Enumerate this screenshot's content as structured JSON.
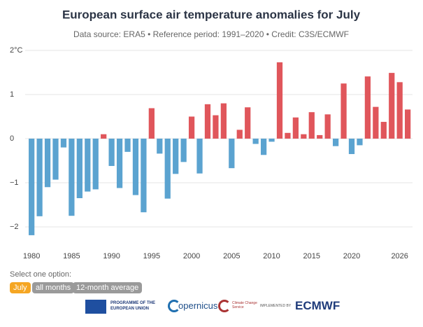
{
  "chart_data": {
    "type": "bar",
    "title": "European surface air temperature anomalies for July",
    "subtitle": "Data source: ERA5 • Reference period: 1991–2020 • Credit: C3S/ECMWF",
    "x": [
      1980,
      1981,
      1982,
      1983,
      1984,
      1985,
      1986,
      1987,
      1988,
      1989,
      1990,
      1991,
      1992,
      1993,
      1994,
      1995,
      1996,
      1997,
      1998,
      1999,
      2000,
      2001,
      2002,
      2003,
      2004,
      2005,
      2006,
      2007,
      2008,
      2009,
      2010,
      2011,
      2012,
      2013,
      2014,
      2015,
      2016,
      2017,
      2018,
      2019,
      2020,
      2021,
      2022,
      2023,
      2024,
      2025,
      2026,
      2027
    ],
    "values": [
      -2.19,
      -1.76,
      -1.1,
      -0.93,
      -0.2,
      -1.75,
      -1.35,
      -1.2,
      -1.15,
      0.1,
      -0.62,
      -1.12,
      -0.3,
      -1.28,
      -1.67,
      0.69,
      -0.34,
      -1.36,
      -0.8,
      -0.53,
      0.5,
      -0.79,
      0.78,
      0.53,
      0.8,
      -0.67,
      0.2,
      0.71,
      -0.12,
      -0.37,
      -0.07,
      1.73,
      0.13,
      0.48,
      0.1,
      0.6,
      0.08,
      0.55,
      -0.17,
      1.25,
      -0.35,
      -0.15,
      1.41,
      0.72,
      0.38,
      1.49,
      1.28,
      0.66
    ],
    "positive_color": "#e0565b",
    "negative_color": "#5ba3d0",
    "xlim": [
      1979.2,
      2027.6
    ],
    "xticks": [
      1980,
      1985,
      1990,
      1995,
      2000,
      2005,
      2010,
      2015,
      2020,
      2026
    ],
    "ylim": [
      -2.35,
      2
    ],
    "yticks": [
      {
        "value": 2,
        "label": "2°C"
      },
      1,
      0,
      {
        "value": -1,
        "label": "−1"
      },
      {
        "value": -2,
        "label": "−2"
      }
    ],
    "grid": true
  },
  "controls": {
    "prompt": "Select one option:",
    "options": [
      "July",
      "all months",
      "12-month average"
    ]
  },
  "footer": {
    "eu": "PROGRAMME OF THE EUROPEAN UNION",
    "copernicus": "opernicus",
    "c3s": "Climate Change Service",
    "implemented": "IMPLEMENTED BY",
    "ecmwf": "ECMWF"
  }
}
